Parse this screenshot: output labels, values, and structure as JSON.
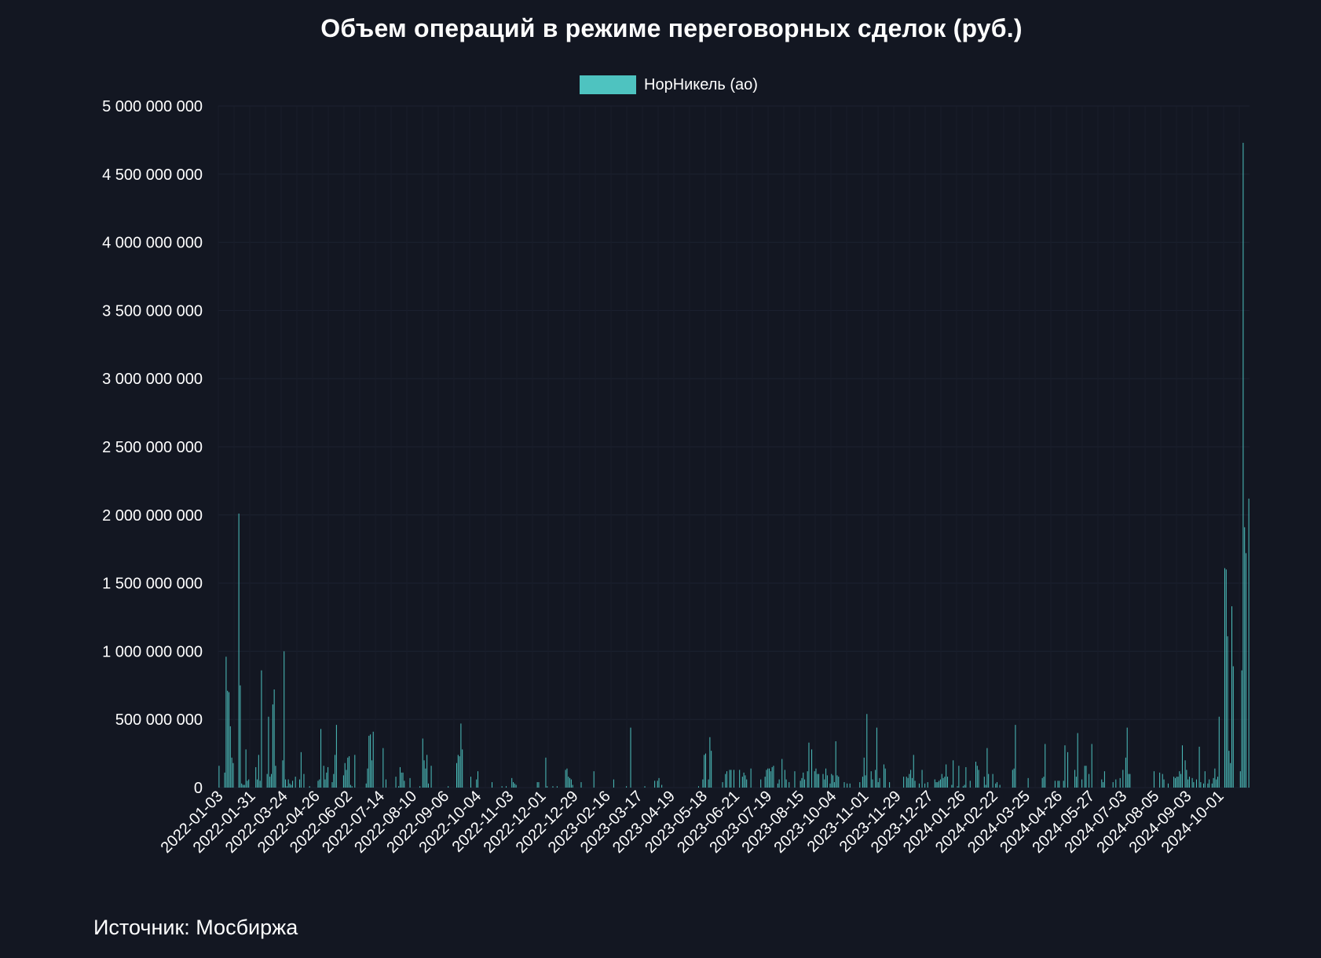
{
  "colors": {
    "background": "#131722",
    "bar": "#4ec3c0",
    "grid": "#1c2230",
    "text": "#ffffff"
  },
  "source": "Источник: Мосбиржа",
  "chart_data": {
    "type": "bar",
    "title": "Объем операций в режиме переговорных сделок (руб.)",
    "xlabel": "",
    "ylabel": "",
    "ylim": [
      0,
      5000000000
    ],
    "y_ticks": [
      0,
      500000000,
      1000000000,
      1500000000,
      2000000000,
      2500000000,
      3000000000,
      3500000000,
      4000000000,
      4500000000,
      5000000000
    ],
    "y_tick_labels": [
      "0",
      "500 000 000",
      "1 000 000 000",
      "1 500 000 000",
      "2 000 000 000",
      "2 500 000 000",
      "3 000 000 000",
      "3 500 000 000",
      "4 000 000 000",
      "4 500 000 000",
      "5 000 000 000"
    ],
    "x_tick_labels": [
      "2022-01-03",
      "2022-01-31",
      "2022-03-24",
      "2022-04-26",
      "2022-06-02",
      "2022-07-14",
      "2022-08-10",
      "2022-09-06",
      "2022-10-04",
      "2022-11-03",
      "2022-12-01",
      "2022-12-29",
      "2023-02-16",
      "2023-03-17",
      "2023-04-19",
      "2023-05-18",
      "2023-06-21",
      "2023-07-19",
      "2023-08-15",
      "2023-10-04",
      "2023-11-01",
      "2023-11-29",
      "2023-12-27",
      "2024-01-26",
      "2024-02-22",
      "2024-03-25",
      "2024-04-26",
      "2024-05-27",
      "2024-07-03",
      "2024-08-05",
      "2024-09-03",
      "2024-10-01"
    ],
    "grid": true,
    "legend_position": "top-center",
    "series": [
      {
        "name": "НорНикель (ао)",
        "values": [
          160000000,
          0,
          0,
          0,
          110000000,
          960000000,
          710000000,
          700000000,
          450000000,
          220000000,
          180000000,
          0,
          0,
          0,
          2010000000,
          750000000,
          30000000,
          20000000,
          20000000,
          280000000,
          50000000,
          60000000,
          0,
          0,
          0,
          0,
          150000000,
          60000000,
          240000000,
          50000000,
          860000000,
          0,
          0,
          0,
          100000000,
          520000000,
          80000000,
          100000000,
          610000000,
          720000000,
          160000000,
          0,
          0,
          0,
          0,
          200000000,
          1000000000,
          60000000,
          10000000,
          60000000,
          30000000,
          20000000,
          50000000,
          0,
          80000000,
          0,
          0,
          60000000,
          260000000,
          0,
          100000000,
          0,
          0,
          0,
          10000000,
          0,
          0,
          0,
          0,
          0,
          50000000,
          60000000,
          430000000,
          0,
          160000000,
          60000000,
          110000000,
          150000000,
          0,
          0,
          40000000,
          100000000,
          240000000,
          460000000,
          0,
          0,
          0,
          0,
          90000000,
          180000000,
          130000000,
          220000000,
          230000000,
          20000000,
          10000000,
          0,
          240000000,
          0,
          0,
          0,
          0,
          0,
          0,
          0,
          30000000,
          140000000,
          380000000,
          390000000,
          200000000,
          410000000,
          0,
          0,
          0,
          0,
          0,
          0,
          290000000,
          0,
          60000000,
          0,
          0,
          0,
          0,
          0,
          0,
          80000000,
          0,
          10000000,
          150000000,
          110000000,
          110000000,
          50000000,
          0,
          0,
          0,
          70000000,
          0,
          0,
          0,
          0,
          0,
          0,
          10000000,
          0,
          360000000,
          200000000,
          140000000,
          240000000,
          30000000,
          0,
          160000000,
          0,
          0,
          0,
          0,
          0,
          0,
          0,
          0,
          0,
          0,
          0,
          10000000,
          0,
          0,
          0,
          0,
          0,
          180000000,
          240000000,
          230000000,
          470000000,
          280000000,
          0,
          0,
          0,
          0,
          0,
          80000000,
          0,
          0,
          0,
          60000000,
          120000000,
          0,
          0,
          0,
          0,
          0,
          0,
          0,
          0,
          0,
          40000000,
          0,
          0,
          0,
          0,
          0,
          0,
          10000000,
          0,
          0,
          10000000,
          0,
          0,
          0,
          70000000,
          40000000,
          30000000,
          20000000,
          0,
          0,
          0,
          0,
          0,
          0,
          0,
          0,
          0,
          0,
          0,
          0,
          0,
          0,
          40000000,
          40000000,
          0,
          0,
          0,
          0,
          220000000,
          10000000,
          0,
          0,
          0,
          10000000,
          0,
          0,
          10000000,
          0,
          0,
          0,
          0,
          0,
          130000000,
          140000000,
          80000000,
          70000000,
          60000000,
          20000000,
          0,
          0,
          0,
          0,
          0,
          40000000,
          0,
          0,
          0,
          0,
          0,
          0,
          0,
          0,
          120000000,
          0,
          0,
          0,
          0,
          0,
          0,
          0,
          0,
          0,
          0,
          0,
          0,
          0,
          60000000,
          0,
          0,
          0,
          0,
          0,
          0,
          0,
          0,
          10000000,
          0,
          0,
          440000000,
          0,
          0,
          0,
          0,
          0,
          0,
          0,
          0,
          0,
          10000000,
          0,
          0,
          0,
          0,
          0,
          0,
          50000000,
          0,
          50000000,
          70000000,
          0,
          20000000,
          0,
          0,
          0,
          0,
          0,
          0,
          0,
          0,
          0,
          0,
          0,
          0,
          0,
          0,
          0,
          0,
          0,
          0,
          0,
          0,
          0,
          0,
          0,
          0,
          0,
          10000000,
          0,
          0,
          60000000,
          240000000,
          250000000,
          0,
          60000000,
          370000000,
          270000000,
          0,
          0,
          0,
          0,
          0,
          0,
          0,
          40000000,
          0,
          100000000,
          120000000,
          0,
          130000000,
          130000000,
          0,
          130000000,
          0,
          0,
          0,
          130000000,
          0,
          80000000,
          110000000,
          90000000,
          60000000,
          0,
          0,
          140000000,
          0,
          0,
          0,
          0,
          0,
          0,
          60000000,
          0,
          0,
          80000000,
          130000000,
          140000000,
          140000000,
          120000000,
          150000000,
          160000000,
          0,
          0,
          30000000,
          60000000,
          0,
          210000000,
          0,
          130000000,
          60000000,
          0,
          40000000,
          0,
          0,
          0,
          120000000,
          0,
          0,
          0,
          50000000,
          70000000,
          110000000,
          60000000,
          0,
          120000000,
          330000000,
          0,
          280000000,
          0,
          120000000,
          140000000,
          100000000,
          100000000,
          0,
          0,
          100000000,
          60000000,
          140000000,
          90000000,
          0,
          30000000,
          100000000,
          90000000,
          40000000,
          340000000,
          90000000,
          80000000,
          0,
          0,
          0,
          40000000,
          0,
          30000000,
          0,
          30000000,
          0,
          0,
          0,
          0,
          0,
          0,
          40000000,
          0,
          80000000,
          220000000,
          90000000,
          540000000,
          0,
          0,
          120000000,
          60000000,
          0,
          130000000,
          440000000,
          40000000,
          70000000,
          0,
          0,
          170000000,
          140000000,
          0,
          0,
          40000000,
          0,
          0,
          0,
          0,
          0,
          0,
          0,
          0,
          0,
          80000000,
          0,
          80000000,
          70000000,
          100000000,
          130000000,
          70000000,
          240000000,
          50000000,
          0,
          0,
          30000000,
          0,
          130000000,
          0,
          30000000,
          0,
          40000000,
          0,
          0,
          0,
          0,
          60000000,
          40000000,
          40000000,
          50000000,
          60000000,
          100000000,
          70000000,
          80000000,
          170000000,
          80000000,
          0,
          0,
          20000000,
          200000000,
          0,
          0,
          10000000,
          160000000,
          0,
          0,
          10000000,
          20000000,
          150000000,
          0,
          0,
          50000000,
          0,
          0,
          0,
          190000000,
          160000000,
          130000000,
          0,
          0,
          0,
          80000000,
          20000000,
          290000000,
          100000000,
          0,
          0,
          100000000,
          0,
          30000000,
          40000000,
          0,
          20000000,
          0,
          0,
          0,
          0,
          0,
          0,
          0,
          0,
          130000000,
          140000000,
          460000000,
          0,
          0,
          0,
          0,
          0,
          0,
          0,
          0,
          70000000,
          0,
          0,
          0,
          0,
          0,
          0,
          0,
          0,
          0,
          70000000,
          80000000,
          320000000,
          0,
          0,
          0,
          0,
          0,
          0,
          50000000,
          0,
          50000000,
          50000000,
          0,
          0,
          50000000,
          310000000,
          0,
          260000000,
          0,
          0,
          0,
          0,
          130000000,
          80000000,
          400000000,
          0,
          0,
          60000000,
          0,
          160000000,
          160000000,
          0,
          100000000,
          0,
          320000000,
          0,
          0,
          0,
          0,
          0,
          0,
          60000000,
          40000000,
          120000000,
          0,
          0,
          0,
          0,
          0,
          40000000,
          0,
          60000000,
          0,
          0,
          70000000,
          0,
          130000000,
          0,
          220000000,
          440000000,
          100000000,
          100000000,
          0,
          0,
          0,
          0,
          0,
          0,
          0,
          0,
          0,
          0,
          0,
          0,
          0,
          0,
          0,
          0,
          120000000,
          0,
          0,
          0,
          110000000,
          0,
          100000000,
          60000000,
          0,
          0,
          30000000,
          0,
          0,
          0,
          80000000,
          70000000,
          80000000,
          80000000,
          120000000,
          100000000,
          310000000,
          0,
          200000000,
          130000000,
          60000000,
          80000000,
          0,
          70000000,
          40000000,
          0,
          60000000,
          0,
          300000000,
          40000000,
          0,
          30000000,
          120000000,
          0,
          30000000,
          60000000,
          0,
          30000000,
          70000000,
          140000000,
          60000000,
          80000000,
          520000000,
          0,
          0,
          0,
          1610000000,
          1600000000,
          1110000000,
          270000000,
          180000000,
          1330000000,
          890000000,
          0,
          0,
          0,
          0,
          120000000,
          860000000,
          4730000000,
          1910000000,
          1720000000,
          0,
          2120000000
        ]
      }
    ]
  }
}
